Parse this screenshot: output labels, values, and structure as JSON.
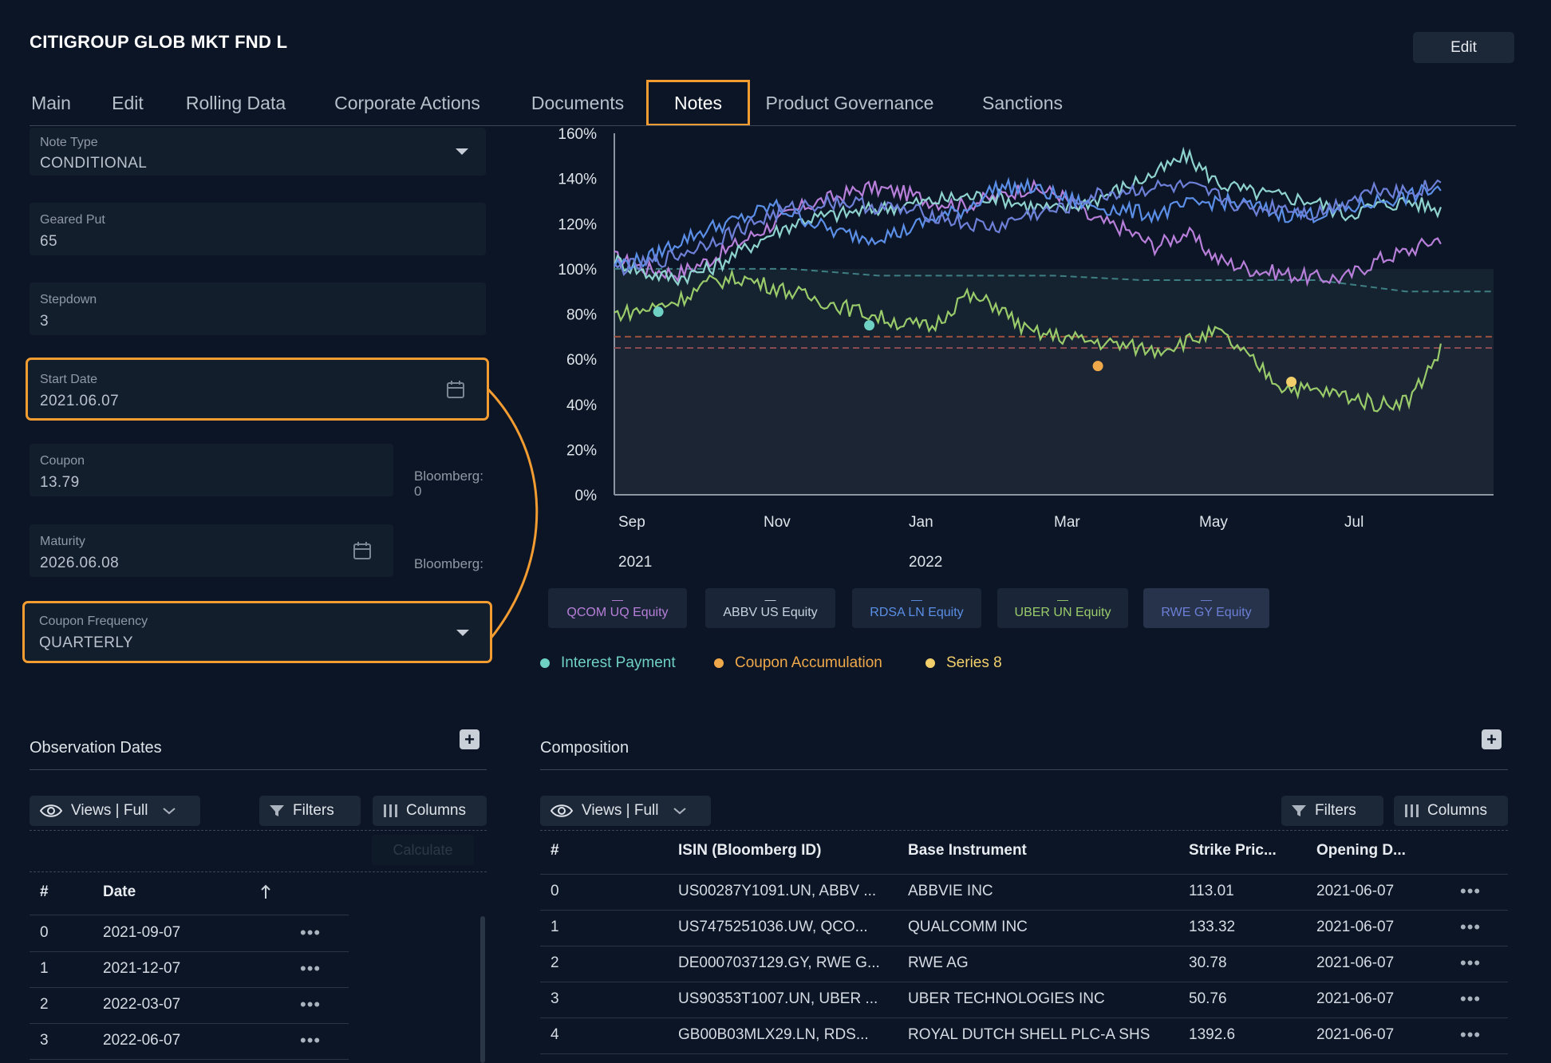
{
  "header": {
    "title": "CITIGROUP GLOB MKT FND L",
    "edit_label": "Edit"
  },
  "tabs": [
    {
      "label": "Main"
    },
    {
      "label": "Edit"
    },
    {
      "label": "Rolling Data"
    },
    {
      "label": "Corporate Actions"
    },
    {
      "label": "Documents"
    },
    {
      "label": "Notes",
      "active": true
    },
    {
      "label": "Product Governance"
    },
    {
      "label": "Sanctions"
    }
  ],
  "form": {
    "note_type": {
      "label": "Note Type",
      "value": "CONDITIONAL"
    },
    "geared_put": {
      "label": "Geared Put",
      "value": "65"
    },
    "stepdown": {
      "label": "Stepdown",
      "value": "3"
    },
    "start_date": {
      "label": "Start Date",
      "value": "2021.06.07"
    },
    "coupon": {
      "label": "Coupon",
      "value": "13.79",
      "bloomberg_label": "Bloomberg:",
      "bloomberg_value": "0"
    },
    "maturity": {
      "label": "Maturity",
      "value": "2026.06.08",
      "bloomberg_label": "Bloomberg:"
    },
    "coupon_frequency": {
      "label": "Coupon Frequency",
      "value": "QUARTERLY"
    }
  },
  "chart_data": {
    "type": "line",
    "y_ticks": [
      "160%",
      "140%",
      "120%",
      "100%",
      "80%",
      "60%",
      "40%",
      "20%",
      "0%"
    ],
    "ylim": [
      0,
      160
    ],
    "x_ticks": [
      {
        "month": "Sep",
        "year": "2021"
      },
      {
        "month": "Nov",
        "year": ""
      },
      {
        "month": "Jan",
        "year": "2022"
      },
      {
        "month": "Mar",
        "year": ""
      },
      {
        "month": "May",
        "year": ""
      },
      {
        "month": "Jul",
        "year": ""
      }
    ],
    "series": [
      {
        "name": "QCOM UQ Equity",
        "color": "#b77fd9",
        "values": [
          105,
          100,
          98,
          104,
          112,
          120,
          128,
          132,
          136,
          134,
          130,
          128,
          132,
          136,
          133,
          122,
          118,
          110,
          116,
          104,
          100,
          98,
          96,
          96,
          104,
          108,
          114
        ]
      },
      {
        "name": "ABBV US Equity",
        "color": "#8fd3cf",
        "values": [
          104,
          98,
          96,
          100,
          108,
          116,
          122,
          124,
          126,
          128,
          130,
          132,
          132,
          128,
          126,
          130,
          136,
          142,
          150,
          138,
          134,
          132,
          130,
          124,
          128,
          130,
          126
        ]
      },
      {
        "name": "RDSA LN Equity",
        "color": "#5b8ee6",
        "values": [
          102,
          104,
          112,
          118,
          122,
          128,
          122,
          116,
          114,
          116,
          122,
          126,
          136,
          136,
          132,
          128,
          126,
          124,
          128,
          130,
          128,
          124,
          124,
          126,
          130,
          132,
          136
        ]
      },
      {
        "name": "UBER UN Equity",
        "color": "#9acb6b",
        "values": [
          80,
          82,
          86,
          94,
          96,
          92,
          88,
          84,
          80,
          76,
          74,
          88,
          84,
          72,
          70,
          68,
          66,
          64,
          68,
          72,
          60,
          48,
          46,
          44,
          40,
          42,
          64
        ]
      },
      {
        "name": "RWE GY Equity",
        "color": "#6d7fd6",
        "values": [
          100,
          102,
          106,
          112,
          118,
          124,
          128,
          130,
          128,
          126,
          124,
          120,
          118,
          124,
          126,
          132,
          134,
          136,
          136,
          132,
          126,
          128,
          124,
          130,
          136,
          134,
          138
        ]
      }
    ],
    "barriers": [
      {
        "color": "#3e7f84",
        "values": [
          100,
          100,
          100,
          97,
          97,
          97,
          95,
          95,
          95,
          90,
          90
        ]
      },
      {
        "color": "#9c4f3c",
        "value": 70
      },
      {
        "color": "#8a4a52",
        "value": 65
      }
    ],
    "events": [
      {
        "type": "Interest Payment",
        "color": "#6fd1c3",
        "points": [
          [
            0.05,
            81
          ],
          [
            0.29,
            75
          ]
        ]
      },
      {
        "type": "Coupon Accumulation",
        "color": "#f0a94a",
        "points": [
          [
            0.55,
            57
          ]
        ]
      },
      {
        "type": "Series 8",
        "color": "#f3cf6b",
        "points": [
          [
            0.77,
            50
          ]
        ]
      }
    ],
    "legend_items": [
      {
        "label": "Interest Payment",
        "color": "#6fd1c3"
      },
      {
        "label": "Coupon Accumulation",
        "color": "#f0a94a"
      },
      {
        "label": "Series 8",
        "color": "#f3cf6b"
      }
    ],
    "equity_chips": [
      {
        "label": "QCOM UQ Equity",
        "color": "#b77fd9",
        "mark": "—"
      },
      {
        "label": "ABBV US Equity",
        "color": "#c8d3df",
        "mark": "—"
      },
      {
        "label": "RDSA LN Equity",
        "color": "#5b8ee6",
        "mark": "—"
      },
      {
        "label": "UBER UN Equity",
        "color": "#9acb6b",
        "mark": "—"
      },
      {
        "label": "RWE GY Equity",
        "color": "#6d7fd6",
        "mark": "—"
      }
    ]
  },
  "observation": {
    "title": "Observation Dates",
    "views_label": "Views | Full",
    "filters_label": "Filters",
    "columns_label": "Columns",
    "calculate_label": "Calculate",
    "headers": {
      "num": "#",
      "date": "Date"
    },
    "rows": [
      {
        "num": "0",
        "date": "2021-09-07"
      },
      {
        "num": "1",
        "date": "2021-12-07"
      },
      {
        "num": "2",
        "date": "2022-03-07"
      },
      {
        "num": "3",
        "date": "2022-06-07"
      }
    ]
  },
  "composition": {
    "title": "Composition",
    "views_label": "Views | Full",
    "filters_label": "Filters",
    "columns_label": "Columns",
    "headers": {
      "num": "#",
      "isin": "ISIN (Bloomberg ID)",
      "base": "Base Instrument",
      "strike": "Strike Pric...",
      "opening": "Opening D..."
    },
    "rows": [
      {
        "num": "0",
        "isin": "US00287Y1091.UN, ABBV ...",
        "base": "ABBVIE INC",
        "strike": "113.01",
        "opening": "2021-06-07"
      },
      {
        "num": "1",
        "isin": "US7475251036.UW, QCO...",
        "base": "QUALCOMM INC",
        "strike": "133.32",
        "opening": "2021-06-07"
      },
      {
        "num": "2",
        "isin": "DE0007037129.GY, RWE G...",
        "base": "RWE AG",
        "strike": "30.78",
        "opening": "2021-06-07"
      },
      {
        "num": "3",
        "isin": "US90353T1007.UN, UBER ...",
        "base": "UBER TECHNOLOGIES INC",
        "strike": "50.76",
        "opening": "2021-06-07"
      },
      {
        "num": "4",
        "isin": "GB00B03MLX29.LN, RDS...",
        "base": "ROYAL DUTCH SHELL PLC-A SHS",
        "strike": "1392.6",
        "opening": "2021-06-07"
      }
    ]
  }
}
